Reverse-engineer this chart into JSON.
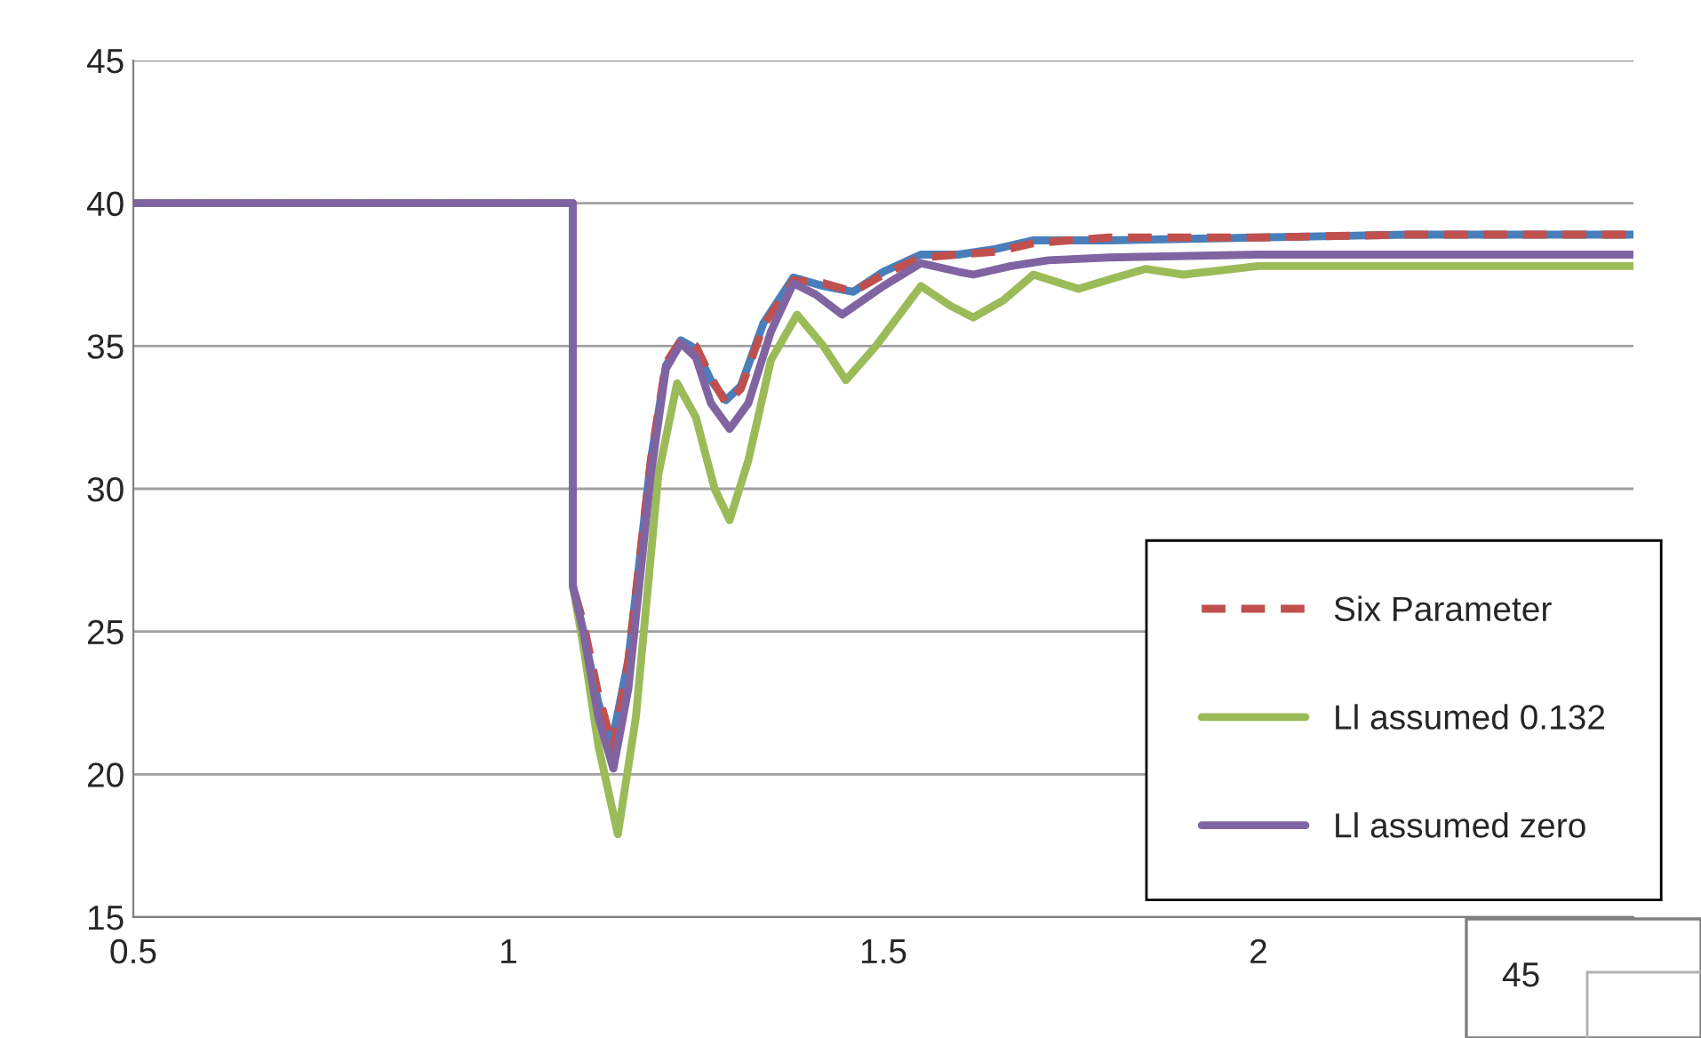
{
  "chart_data": {
    "type": "line",
    "xlim": [
      0.5,
      2.5
    ],
    "xticks": [
      0.5,
      1,
      1.5,
      2
    ],
    "ylim": [
      15,
      45
    ],
    "yticks": [
      15,
      20,
      25,
      30,
      35,
      40,
      45
    ],
    "grid": "y",
    "legend": "bottom right",
    "marker": "none",
    "annotations": [
      "45"
    ],
    "series": [
      {
        "color": "#4a7ebb",
        "line_style": "solid",
        "x": [
          0.5,
          1.086,
          1.086,
          1.1,
          1.12,
          1.138,
          1.16,
          1.19,
          1.21,
          1.23,
          1.25,
          1.27,
          1.29,
          1.31,
          1.34,
          1.38,
          1.42,
          1.46,
          1.5,
          1.55,
          1.6,
          1.65,
          1.7,
          1.8,
          2.0,
          2.2,
          2.5
        ],
        "values": [
          40,
          40,
          26.6,
          25.0,
          22.5,
          21.1,
          24.0,
          31.0,
          34.3,
          35.2,
          34.9,
          33.8,
          33.1,
          33.6,
          35.8,
          37.4,
          37.1,
          36.9,
          37.6,
          38.2,
          38.2,
          38.4,
          38.7,
          38.7,
          38.8,
          38.9,
          38.9
        ]
      },
      {
        "name": "Six Parameter",
        "color": "#c0504d",
        "line_style": "dashed",
        "x": [
          0.5,
          1.086,
          1.086,
          1.1,
          1.12,
          1.14,
          1.16,
          1.19,
          1.21,
          1.23,
          1.25,
          1.27,
          1.29,
          1.31,
          1.34,
          1.38,
          1.42,
          1.46,
          1.5,
          1.55,
          1.6,
          1.65,
          1.7,
          1.8,
          2.0,
          2.2,
          2.5
        ],
        "values": [
          40,
          40,
          26.6,
          25.3,
          22.8,
          20.9,
          24.0,
          31.0,
          34.4,
          35.2,
          35.0,
          33.9,
          33.0,
          33.5,
          35.7,
          37.3,
          37.2,
          36.9,
          37.5,
          38.1,
          38.2,
          38.3,
          38.6,
          38.8,
          38.8,
          38.9,
          38.9
        ]
      },
      {
        "name": "Ll assumed 0.132",
        "color": "#9bbb59",
        "line_style": "solid",
        "x": [
          0.5,
          1.086,
          1.086,
          1.1,
          1.12,
          1.146,
          1.17,
          1.2,
          1.225,
          1.25,
          1.275,
          1.295,
          1.32,
          1.35,
          1.385,
          1.42,
          1.45,
          1.49,
          1.55,
          1.59,
          1.62,
          1.66,
          1.7,
          1.76,
          1.81,
          1.85,
          1.9,
          2.0,
          2.2,
          2.5
        ],
        "values": [
          40,
          40,
          26.6,
          24.5,
          21.0,
          17.9,
          22.0,
          30.5,
          33.7,
          32.5,
          30.0,
          28.9,
          31.0,
          34.5,
          36.1,
          35.0,
          33.8,
          35.0,
          37.1,
          36.4,
          36.0,
          36.6,
          37.5,
          37.0,
          37.4,
          37.7,
          37.5,
          37.8,
          37.8,
          37.8
        ]
      },
      {
        "name": "Ll assumed zero",
        "color": "#8064a2",
        "line_style": "solid",
        "x": [
          0.5,
          1.086,
          1.086,
          1.1,
          1.12,
          1.14,
          1.16,
          1.19,
          1.21,
          1.23,
          1.25,
          1.27,
          1.295,
          1.32,
          1.35,
          1.38,
          1.41,
          1.445,
          1.5,
          1.55,
          1.6,
          1.62,
          1.67,
          1.72,
          1.8,
          2.0,
          2.5
        ],
        "values": [
          40,
          40,
          26.6,
          25.0,
          22.0,
          20.2,
          23.0,
          30.5,
          34.2,
          35.1,
          34.6,
          33.0,
          32.1,
          33.0,
          35.5,
          37.2,
          36.8,
          36.1,
          37.1,
          37.9,
          37.6,
          37.5,
          37.8,
          38.0,
          38.1,
          38.2,
          38.2
        ]
      }
    ]
  }
}
